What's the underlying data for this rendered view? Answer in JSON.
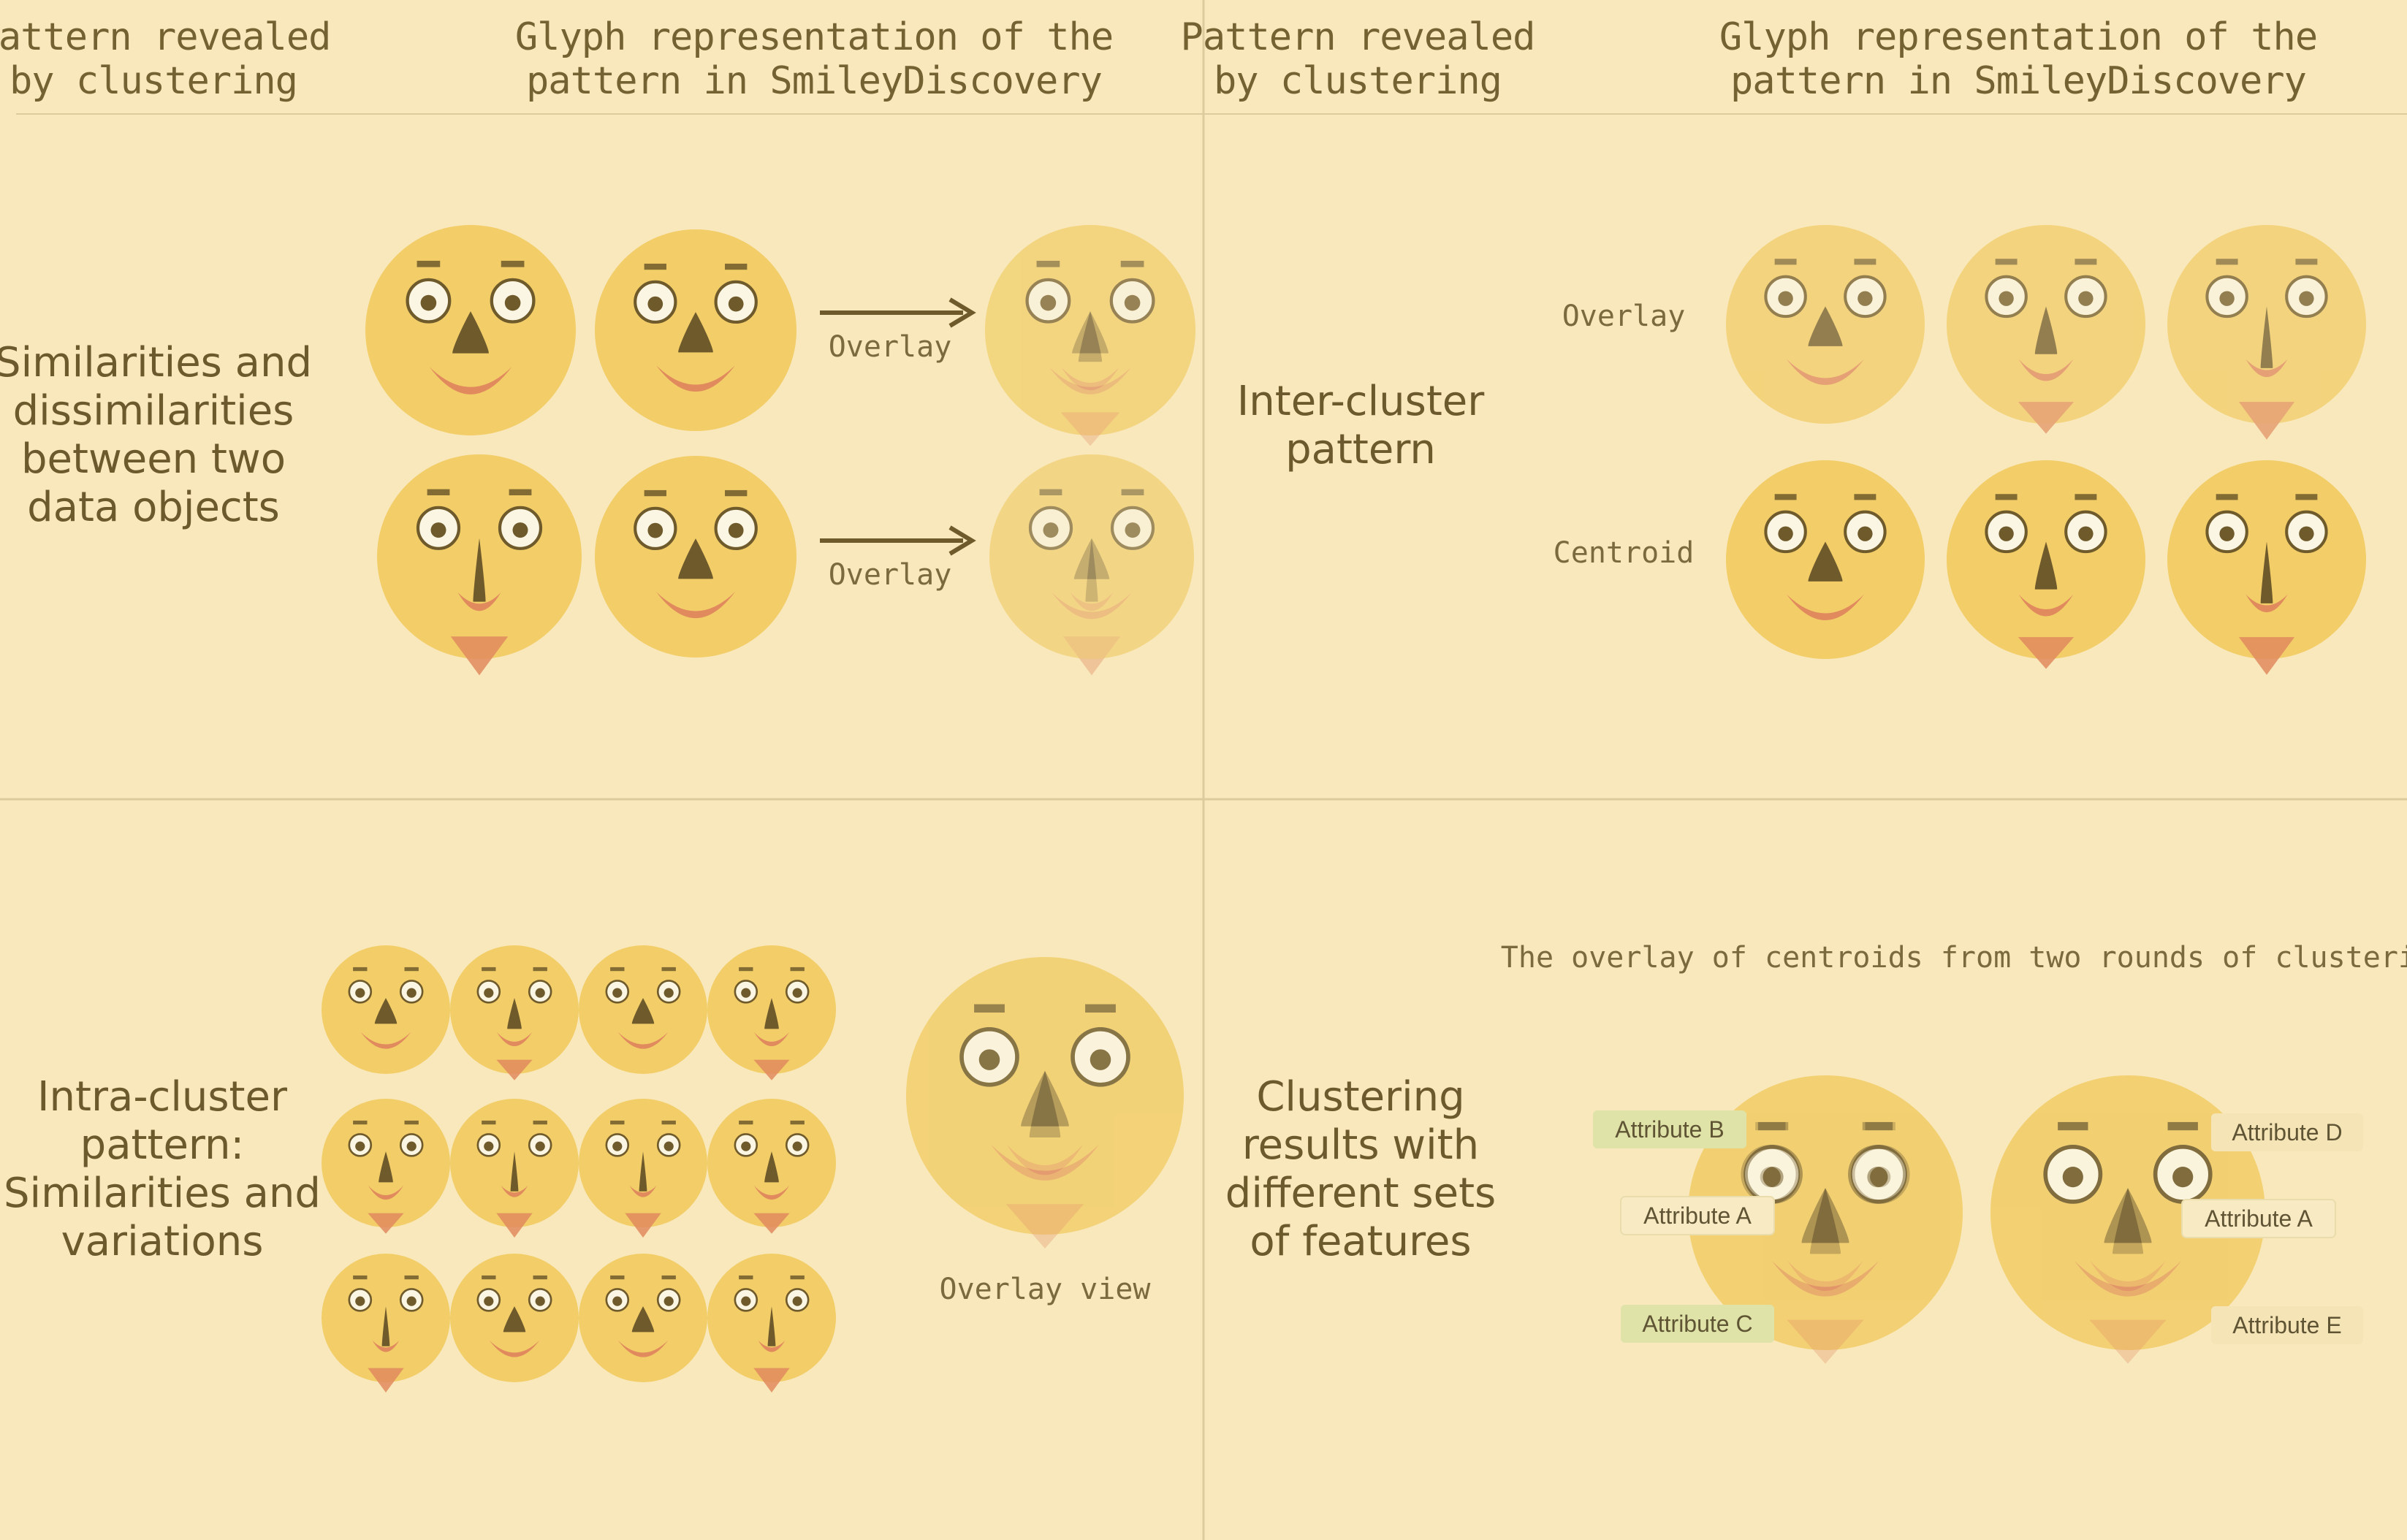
{
  "colors": {
    "background": "#f8e8bc",
    "face": "#f2cd68",
    "feature_dark": "#6f5a2b",
    "mouth": "#e08a5e",
    "divider": "#dccb9d",
    "tag_green": "#dfe3a8",
    "tag_light": "#f8ebc4"
  },
  "header": {
    "pattern": [
      "Pattern revealed",
      "by clustering"
    ],
    "glyph": [
      "Glyph representation of the",
      "pattern in SmileyDiscovery"
    ]
  },
  "q1": {
    "title": [
      "Similarities and",
      "dissimilarities",
      "between two",
      "data objects"
    ],
    "overlay_label": "Overlay"
  },
  "q2": {
    "title": [
      "Inter-cluster",
      "pattern"
    ],
    "row_labels": [
      "Overlay",
      "Centroid"
    ]
  },
  "q3": {
    "title": [
      "Intra-cluster",
      "pattern:",
      "Similarities and",
      "variations"
    ],
    "overlay_caption": "Overlay view"
  },
  "q4": {
    "title": [
      "Clustering",
      "results with",
      "different sets",
      "of features"
    ],
    "caption": "The overlay of centroids from two rounds of clustering",
    "left_tags": [
      "Attribute B",
      "Attribute A",
      "Attribute C"
    ],
    "right_tags": [
      "Attribute D",
      "Attribute A",
      "Attribute E"
    ]
  }
}
